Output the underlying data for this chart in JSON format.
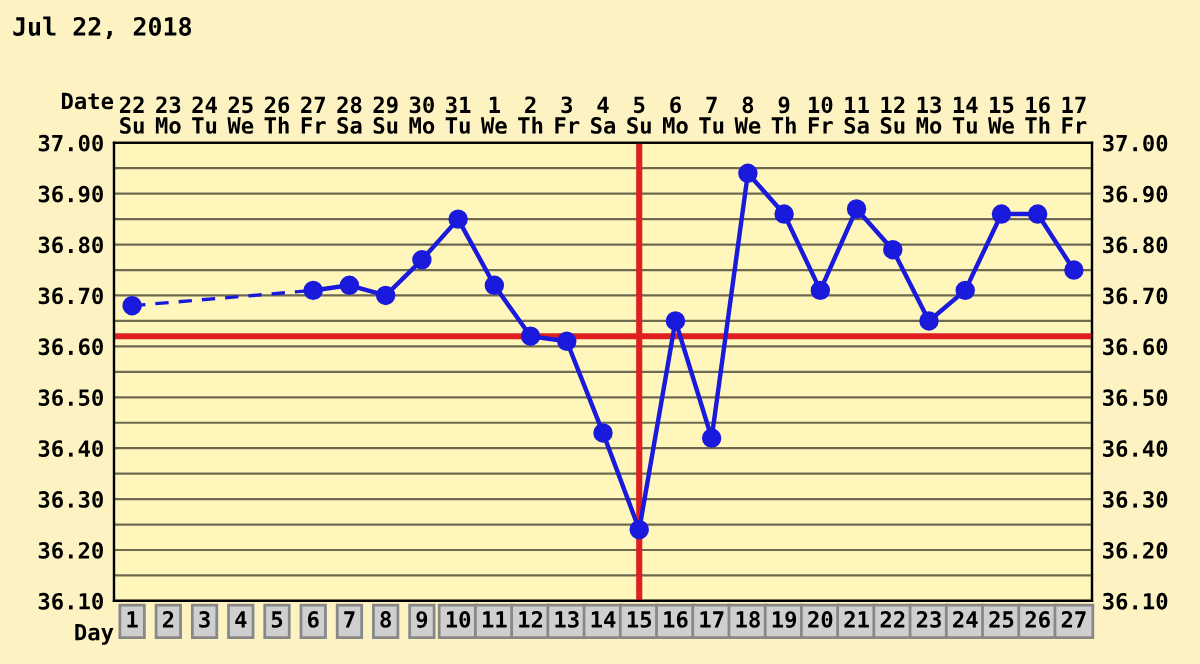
{
  "chart_data": {
    "type": "line",
    "title": "Jul 22, 2018",
    "xlabel": "Day",
    "x2label": "Date",
    "categories": [
      "1",
      "2",
      "3",
      "4",
      "5",
      "6",
      "7",
      "8",
      "9",
      "10",
      "11",
      "12",
      "13",
      "14",
      "15",
      "16",
      "17",
      "18",
      "19",
      "20",
      "21",
      "22",
      "23",
      "24",
      "25",
      "26",
      "27"
    ],
    "annotations": [
      "22\nSu",
      "23\nMo",
      "24\nTu",
      "25\nWe",
      "26\nTh",
      "27\nFr",
      "28\nSa",
      "29\nSu",
      "30\nMo",
      "31\nTu",
      "1\nWe",
      "2\nTh",
      "3\nFr",
      "4\nSa",
      "5\nSu",
      "6\nMo",
      "7\nTu",
      "8\nWe",
      "9\nTh",
      "10\nFr",
      "11\nSa",
      "12\nSu",
      "13\nMo",
      "14\nTu",
      "15\nWe",
      "16\nTh",
      "17\nFr"
    ],
    "series": [
      {
        "color": "#1a1adc",
        "line_style": "dashed",
        "marker": "none",
        "values": [
          36.68,
          null,
          null,
          null,
          null,
          36.71,
          null,
          null,
          null,
          null,
          null,
          null,
          null,
          null,
          null,
          null,
          null,
          null,
          null,
          null,
          null,
          null,
          null,
          null,
          null,
          null,
          null
        ]
      },
      {
        "color": "#1a1adc",
        "line_style": "solid",
        "marker": "circle",
        "values": [
          36.68,
          null,
          null,
          null,
          null,
          36.71,
          36.72,
          36.7,
          36.77,
          36.85,
          36.72,
          36.62,
          36.61,
          36.43,
          36.24,
          36.65,
          36.42,
          36.94,
          36.86,
          36.71,
          36.87,
          36.79,
          36.65,
          36.71,
          36.86,
          36.86,
          36.75
        ]
      }
    ],
    "ylim": [
      36.1,
      37.0
    ],
    "yticks": [
      {
        "value": 36.1,
        "label": "36.10"
      },
      {
        "value": 36.15,
        "label": null
      },
      {
        "value": 36.2,
        "label": "36.20"
      },
      {
        "value": 36.25,
        "label": null
      },
      {
        "value": 36.3,
        "label": "36.30"
      },
      {
        "value": 36.35,
        "label": null
      },
      {
        "value": 36.4,
        "label": "36.40"
      },
      {
        "value": 36.45,
        "label": null
      },
      {
        "value": 36.5,
        "label": "36.50"
      },
      {
        "value": 36.55,
        "label": null
      },
      {
        "value": 36.6,
        "label": "36.60"
      },
      {
        "value": 36.65,
        "label": null
      },
      {
        "value": 36.7,
        "label": "36.70"
      },
      {
        "value": 36.75,
        "label": null
      },
      {
        "value": 36.8,
        "label": "36.80"
      },
      {
        "value": 36.85,
        "label": null
      },
      {
        "value": 36.9,
        "label": "36.90"
      },
      {
        "value": 36.95,
        "label": null
      },
      {
        "value": 37.0,
        "label": "37.00"
      }
    ],
    "y2lim": [
      36.1,
      37.0
    ],
    "y2ticks": [
      {
        "value": 36.1,
        "label": "36.10"
      },
      {
        "value": 36.15,
        "label": null
      },
      {
        "value": 36.2,
        "label": "36.20"
      },
      {
        "value": 36.25,
        "label": null
      },
      {
        "value": 36.3,
        "label": "36.30"
      },
      {
        "value": 36.35,
        "label": null
      },
      {
        "value": 36.4,
        "label": "36.40"
      },
      {
        "value": 36.45,
        "label": null
      },
      {
        "value": 36.5,
        "label": "36.50"
      },
      {
        "value": 36.55,
        "label": null
      },
      {
        "value": 36.6,
        "label": "36.60"
      },
      {
        "value": 36.65,
        "label": null
      },
      {
        "value": 36.7,
        "label": "36.70"
      },
      {
        "value": 36.75,
        "label": null
      },
      {
        "value": 36.8,
        "label": "36.80"
      },
      {
        "value": 36.85,
        "label": null
      },
      {
        "value": 36.9,
        "label": "36.90"
      },
      {
        "value": 36.95,
        "label": null
      },
      {
        "value": 37.0,
        "label": "37.00"
      }
    ],
    "ref_lines": [
      {
        "axis": "y",
        "value": 36.62,
        "color": "#e02020"
      },
      {
        "axis": "x",
        "value": "15",
        "color": "#e02020"
      }
    ],
    "grid": true,
    "legend": false
  }
}
